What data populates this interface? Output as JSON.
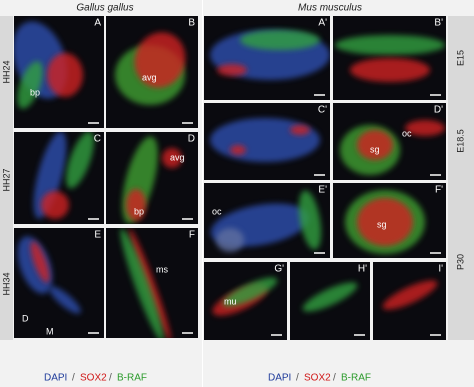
{
  "left": {
    "title": "Gallus gallus",
    "stages": [
      "HH24",
      "HH27",
      "HH34"
    ],
    "panels": [
      {
        "label": "A",
        "annotations": [
          "bp"
        ]
      },
      {
        "label": "B",
        "annotations": [
          "avg"
        ]
      },
      {
        "label": "C",
        "annotations": []
      },
      {
        "label": "D",
        "annotations": [
          "avg",
          "bp"
        ]
      },
      {
        "label": "E",
        "annotations": [
          "D",
          "M"
        ]
      },
      {
        "label": "F",
        "annotations": [
          "ms"
        ]
      }
    ],
    "legend": [
      "DAPI",
      "SOX2",
      "B-RAF"
    ],
    "separator": "/"
  },
  "right": {
    "title": "Mus musculus",
    "stages": [
      "E15",
      "E18.5",
      "P30"
    ],
    "panels": [
      {
        "label": "A'",
        "annotations": []
      },
      {
        "label": "B'",
        "annotations": []
      },
      {
        "label": "C'",
        "annotations": []
      },
      {
        "label": "D'",
        "annotations": [
          "sg",
          "oc"
        ]
      },
      {
        "label": "E'",
        "annotations": [
          "oc"
        ]
      },
      {
        "label": "F'",
        "annotations": [
          "sg"
        ]
      },
      {
        "label": "G'",
        "annotations": [
          "mu"
        ]
      },
      {
        "label": "H'",
        "annotations": []
      },
      {
        "label": "I'",
        "annotations": []
      }
    ],
    "legend": [
      "DAPI",
      "SOX2",
      "B-RAF"
    ],
    "separator": "/"
  }
}
